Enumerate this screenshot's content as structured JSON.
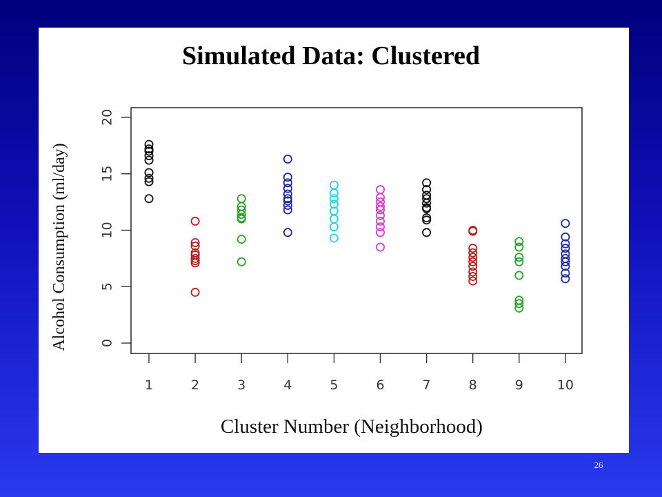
{
  "slide": {
    "page_number": "26",
    "colors": {
      "background_top": "#00007c",
      "background_bottom": "#2a3aee",
      "panel": "#ffffff"
    }
  },
  "chart_data": {
    "type": "scatter",
    "title": "Simulated Data: Clustered",
    "xlabel": "Cluster Number (Neighborhood)",
    "ylabel": "Alcohol Consumption (ml/day)",
    "xlim": [
      1,
      10
    ],
    "ylim": [
      0,
      20
    ],
    "x_ticks": [
      1,
      2,
      3,
      4,
      5,
      6,
      7,
      8,
      9,
      10
    ],
    "y_ticks": [
      0,
      5,
      10,
      15,
      20
    ],
    "grid": false,
    "legend": "none",
    "marker": "open-circle",
    "series": [
      {
        "x": 1,
        "color": "#111111",
        "values": [
          17.6,
          17.2,
          17.0,
          16.6,
          16.2,
          15.1,
          14.6,
          14.3,
          12.8
        ]
      },
      {
        "x": 2,
        "color": "#b22222",
        "values": [
          10.8,
          8.9,
          8.6,
          8.0,
          7.8,
          7.5,
          7.3,
          7.1,
          4.5
        ]
      },
      {
        "x": 3,
        "color": "#2ca02c",
        "values": [
          12.8,
          12.1,
          11.8,
          11.4,
          11.1,
          11.0,
          9.2,
          7.2
        ]
      },
      {
        "x": 4,
        "color": "#1f2a9c",
        "values": [
          16.3,
          14.7,
          14.2,
          13.7,
          13.2,
          12.8,
          12.6,
          12.2,
          11.8,
          9.8
        ]
      },
      {
        "x": 5,
        "color": "#22d3e6",
        "values": [
          14.0,
          13.3,
          12.8,
          12.3,
          11.7,
          11.0,
          10.3,
          9.3
        ]
      },
      {
        "x": 6,
        "color": "#d23fd2",
        "values": [
          13.6,
          12.9,
          12.5,
          12.1,
          11.8,
          11.3,
          10.8,
          10.3,
          9.8,
          8.5
        ]
      },
      {
        "x": 7,
        "color": "#111111",
        "values": [
          14.2,
          13.6,
          13.1,
          12.8,
          12.4,
          12.0,
          11.9,
          11.1,
          10.9,
          9.8
        ]
      },
      {
        "x": 8,
        "color": "#b22222",
        "values": [
          10.0,
          9.9,
          8.4,
          8.0,
          7.6,
          7.2,
          6.8,
          6.3,
          5.9,
          5.5
        ]
      },
      {
        "x": 9,
        "color": "#2ca02c",
        "values": [
          9.0,
          8.5,
          7.6,
          7.2,
          6.0,
          3.8,
          3.5,
          3.1
        ]
      },
      {
        "x": 10,
        "color": "#1f2a9c",
        "values": [
          10.6,
          9.4,
          8.8,
          8.4,
          7.9,
          7.5,
          7.2,
          6.8,
          6.2,
          5.7
        ]
      }
    ]
  }
}
